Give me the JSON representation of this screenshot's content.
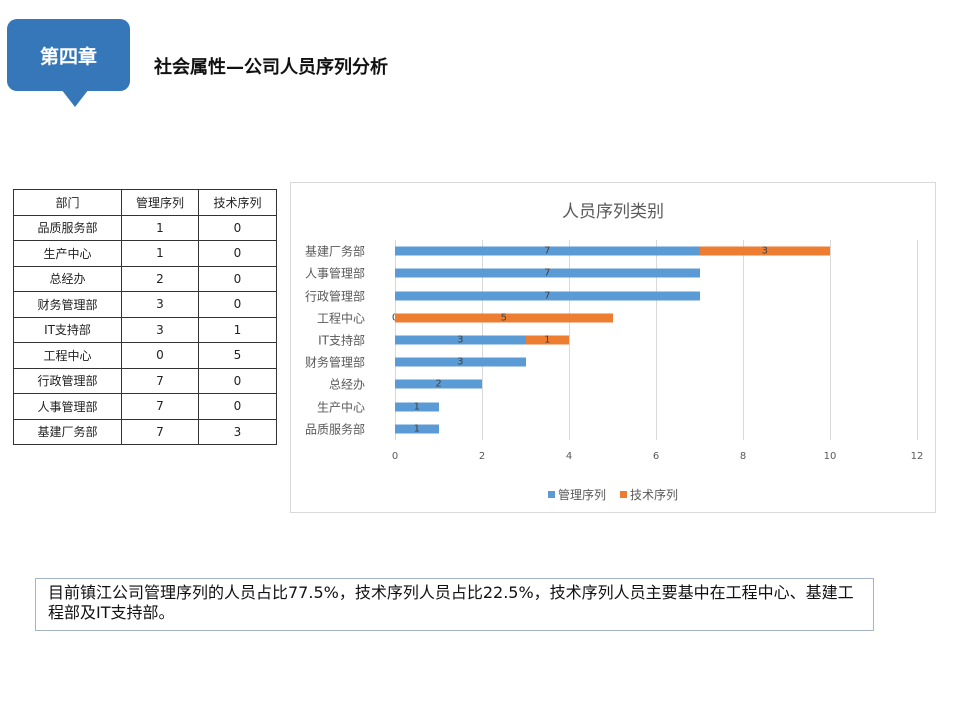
{
  "header": {
    "chapter": "第四章",
    "title": "社会属性—公司人员序列分析"
  },
  "table": {
    "headers": [
      "部门",
      "管理序列",
      "技术序列"
    ],
    "rows": [
      [
        "品质服务部",
        "1",
        "0"
      ],
      [
        "生产中心",
        "1",
        "0"
      ],
      [
        "总经办",
        "2",
        "0"
      ],
      [
        "财务管理部",
        "3",
        "0"
      ],
      [
        "IT支持部",
        "3",
        "1"
      ],
      [
        "工程中心",
        "0",
        "5"
      ],
      [
        "行政管理部",
        "7",
        "0"
      ],
      [
        "人事管理部",
        "7",
        "0"
      ],
      [
        "基建厂务部",
        "7",
        "3"
      ]
    ]
  },
  "colors": {
    "management": "#5b9bd5",
    "technical": "#ed7d31",
    "badge": "#3577b8"
  },
  "chart_data": {
    "type": "bar",
    "orientation": "horizontal",
    "stacked": true,
    "title": "人员序列类别",
    "xlabel": "",
    "ylabel": "",
    "xlim": [
      0,
      12
    ],
    "x_ticks": [
      "0",
      "2",
      "4",
      "6",
      "8",
      "10",
      "12"
    ],
    "grid": true,
    "legend_position": "bottom",
    "categories": [
      "品质服务部",
      "生产中心",
      "总经办",
      "财务管理部",
      "IT支持部",
      "工程中心",
      "行政管理部",
      "人事管理部",
      "基建厂务部"
    ],
    "series": [
      {
        "name": "管理序列",
        "values": [
          1,
          1,
          2,
          3,
          3,
          0,
          7,
          7,
          7
        ]
      },
      {
        "name": "技术序列",
        "values": [
          0,
          0,
          0,
          0,
          1,
          5,
          0,
          0,
          3
        ]
      }
    ]
  },
  "summary": {
    "text": "目前镇江公司管理序列的人员占比77.5%，技术序列人员占比22.5%，技术序列人员主要基中在工程中心、基建工程部及IT支持部。"
  }
}
